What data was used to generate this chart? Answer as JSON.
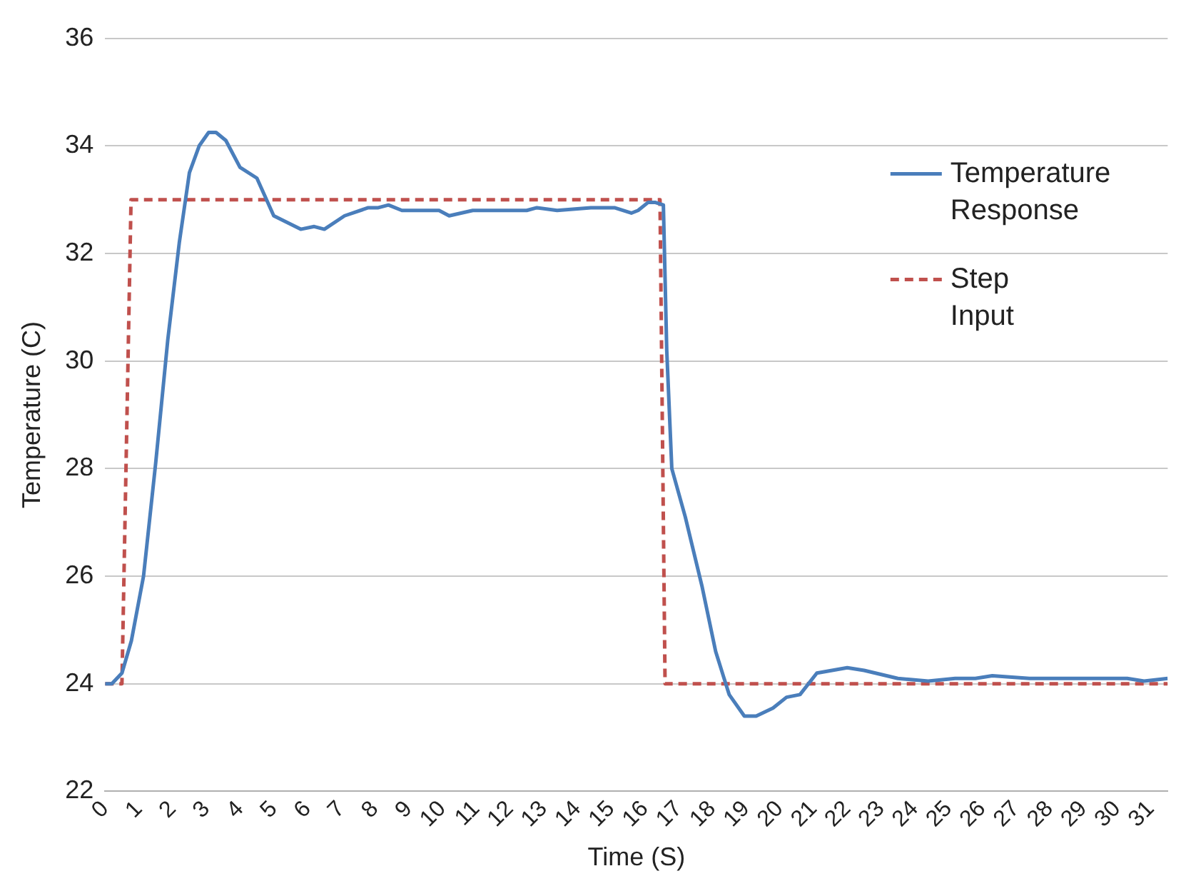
{
  "chart_data": {
    "type": "line",
    "xlabel": "Time (S)",
    "ylabel": "Temperature (C)",
    "xlim": [
      0,
      31.5
    ],
    "xticks": [
      0,
      1,
      2,
      3,
      4,
      5,
      6,
      7,
      8,
      9,
      10,
      11,
      12,
      13,
      14,
      15,
      16,
      17,
      18,
      19,
      20,
      21,
      22,
      23,
      24,
      25,
      26,
      27,
      28,
      29,
      30,
      31
    ],
    "ylim": [
      22,
      36
    ],
    "yticks": [
      22,
      24,
      26,
      28,
      30,
      32,
      34,
      36
    ],
    "grid": "y",
    "legend": "top right",
    "marker": "none",
    "series": [
      {
        "name": "Temperature Response",
        "color": "#4a7ebb",
        "line_style": "solid",
        "x": [
          0,
          0.2,
          0.5,
          0.78,
          1.14,
          1.5,
          1.86,
          2.2,
          2.5,
          2.79,
          3.07,
          3.29,
          3.58,
          4.0,
          4.5,
          5.0,
          5.8,
          6.2,
          6.5,
          7.1,
          7.8,
          8.1,
          8.4,
          8.8,
          9.2,
          9.9,
          10.2,
          10.9,
          12.5,
          12.8,
          13.4,
          14.4,
          15.1,
          15.6,
          15.8,
          16.1,
          16.3,
          16.55,
          16.65,
          16.8,
          17.2,
          17.7,
          18.1,
          18.5,
          18.95,
          19.3,
          19.8,
          20.2,
          20.6,
          21.1,
          22.0,
          22.5,
          23.5,
          24.4,
          25.2,
          25.8,
          26.3,
          27.4,
          28.8,
          30.3,
          30.8,
          31.5
        ],
        "values": [
          24.0,
          24.0,
          24.2,
          24.8,
          26.0,
          28.1,
          30.4,
          32.2,
          33.5,
          34.0,
          34.25,
          34.25,
          34.1,
          33.6,
          33.4,
          32.7,
          32.45,
          32.5,
          32.45,
          32.7,
          32.85,
          32.85,
          32.9,
          32.8,
          32.8,
          32.8,
          32.7,
          32.8,
          32.8,
          32.85,
          32.8,
          32.85,
          32.85,
          32.75,
          32.8,
          32.95,
          32.95,
          32.9,
          30.2,
          28.0,
          27.1,
          25.8,
          24.6,
          23.8,
          23.4,
          23.4,
          23.55,
          23.75,
          23.8,
          24.2,
          24.3,
          24.25,
          24.1,
          24.05,
          24.1,
          24.1,
          24.15,
          24.1,
          24.1,
          24.1,
          24.05,
          24.1
        ]
      },
      {
        "name": "Step Input",
        "color": "#c0504d",
        "line_style": "dashed",
        "x": [
          0,
          0.5,
          0.77,
          16.45,
          16.6,
          31.5
        ],
        "values": [
          24,
          24,
          33,
          33,
          24,
          24
        ]
      }
    ]
  }
}
